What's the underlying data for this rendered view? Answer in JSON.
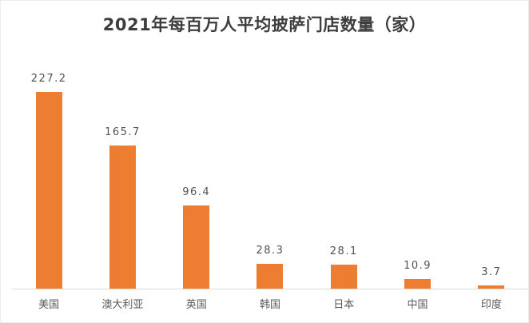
{
  "chart_data": {
    "type": "bar",
    "title": "2021年每百万人平均披萨门店数量（家）",
    "categories": [
      "美国",
      "澳大利亚",
      "英国",
      "韩国",
      "日本",
      "中国",
      "印度"
    ],
    "values": [
      227.2,
      165.7,
      96.4,
      28.3,
      28.1,
      10.9,
      3.7
    ],
    "value_labels": [
      "227.2",
      "165.7",
      "96.4",
      "28.3",
      "28.1",
      "10.9",
      "3.7"
    ],
    "xlabel": "",
    "ylabel": "",
    "ylim": [
      0,
      240
    ],
    "grid": false,
    "legend_position": "none",
    "data_labels": "above-bars",
    "bar_color": "#ED7D31",
    "axis_line_color": "#d9d9d9",
    "title_color": "#3d3d3d",
    "label_color": "#595959"
  }
}
